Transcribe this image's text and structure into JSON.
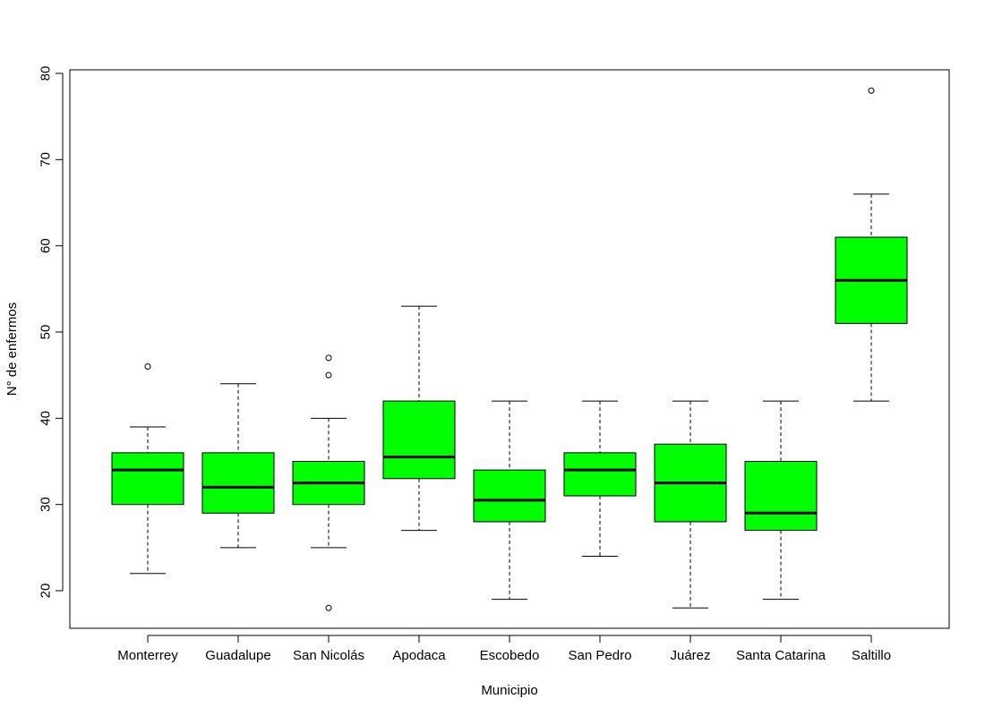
{
  "chart_data": {
    "type": "boxplot",
    "xlabel": "Municipio",
    "ylabel": "N° de enfermos",
    "ylim": [
      15.5,
      81.5
    ],
    "yticks": [
      20,
      30,
      40,
      50,
      60,
      70,
      80
    ],
    "grid": false,
    "legend": "none",
    "box_color": "#00FF00",
    "categories": [
      "Monterrey",
      "Guadalupe",
      "San Nicolás",
      "Apodaca",
      "Escobedo",
      "San Pedro",
      "Juárez",
      "Santa Catarina",
      "Saltillo"
    ],
    "boxes": [
      {
        "category": "Monterrey",
        "whisker_low": 22,
        "q1": 30,
        "median": 34,
        "q3": 36,
        "whisker_high": 39,
        "outliers": [
          46
        ]
      },
      {
        "category": "Guadalupe",
        "whisker_low": 25,
        "q1": 29,
        "median": 32,
        "q3": 36,
        "whisker_high": 44,
        "outliers": []
      },
      {
        "category": "San Nicolás",
        "whisker_low": 25,
        "q1": 30,
        "median": 32.5,
        "q3": 35,
        "whisker_high": 40,
        "outliers": [
          18,
          45,
          47
        ]
      },
      {
        "category": "Apodaca",
        "whisker_low": 27,
        "q1": 33,
        "median": 35.5,
        "q3": 42,
        "whisker_high": 53,
        "outliers": []
      },
      {
        "category": "Escobedo",
        "whisker_low": 19,
        "q1": 28,
        "median": 30.5,
        "q3": 34,
        "whisker_high": 42,
        "outliers": []
      },
      {
        "category": "San Pedro",
        "whisker_low": 24,
        "q1": 31,
        "median": 34,
        "q3": 36,
        "whisker_high": 42,
        "outliers": []
      },
      {
        "category": "Juárez",
        "whisker_low": 18,
        "q1": 28,
        "median": 32.5,
        "q3": 37,
        "whisker_high": 42,
        "outliers": []
      },
      {
        "category": "Santa Catarina",
        "whisker_low": 19,
        "q1": 27,
        "median": 29,
        "q3": 35,
        "whisker_high": 42,
        "outliers": []
      },
      {
        "category": "Saltillo",
        "whisker_low": 42,
        "q1": 51,
        "median": 56,
        "q3": 61,
        "whisker_high": 66,
        "outliers": [
          78
        ]
      }
    ]
  }
}
